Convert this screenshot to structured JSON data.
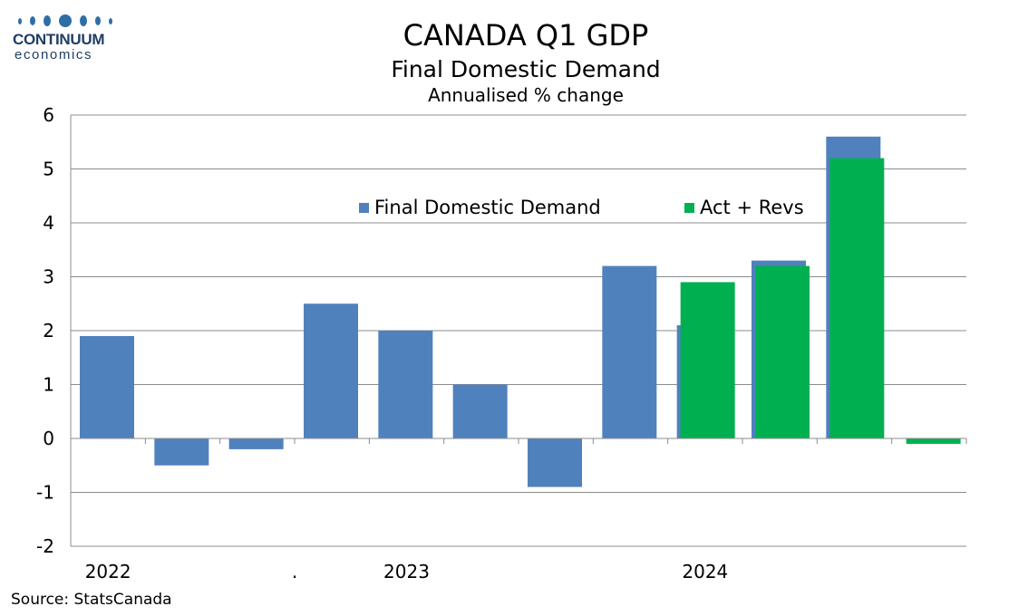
{
  "logo": {
    "line1": "CONTINUUM",
    "line2": "economics"
  },
  "title": "CANADA Q1 GDP",
  "subtitle": "Final Domestic Demand",
  "subtitle2": "Annualised % change",
  "source": "Source: StatsCanada",
  "chart_data": {
    "type": "bar",
    "ylim": [
      -2,
      6
    ],
    "yticks": [
      "6",
      "5",
      "4",
      "3",
      "2",
      "1",
      "0",
      "-1",
      "-2"
    ],
    "ytick_values": [
      6,
      5,
      4,
      3,
      2,
      1,
      0,
      -1,
      -2
    ],
    "x_tick_labels": [
      {
        "label": "2022",
        "index": 0
      },
      {
        "label": ".",
        "index": 2.5
      },
      {
        "label": "2023",
        "index": 4
      },
      {
        "label": "2024",
        "index": 8
      }
    ],
    "grid": true,
    "legend_position": "top-center",
    "series": [
      {
        "name": "Final Domestic Demand",
        "color": "#4f81bd",
        "values": [
          1.9,
          -0.5,
          -0.2,
          2.5,
          2.0,
          1.0,
          -0.9,
          3.2,
          2.1,
          3.3,
          5.6,
          null
        ]
      },
      {
        "name": "Act + Revs",
        "color": "#00b050",
        "values": [
          null,
          null,
          null,
          null,
          null,
          null,
          null,
          null,
          2.9,
          3.2,
          5.2,
          -0.1
        ]
      }
    ]
  }
}
